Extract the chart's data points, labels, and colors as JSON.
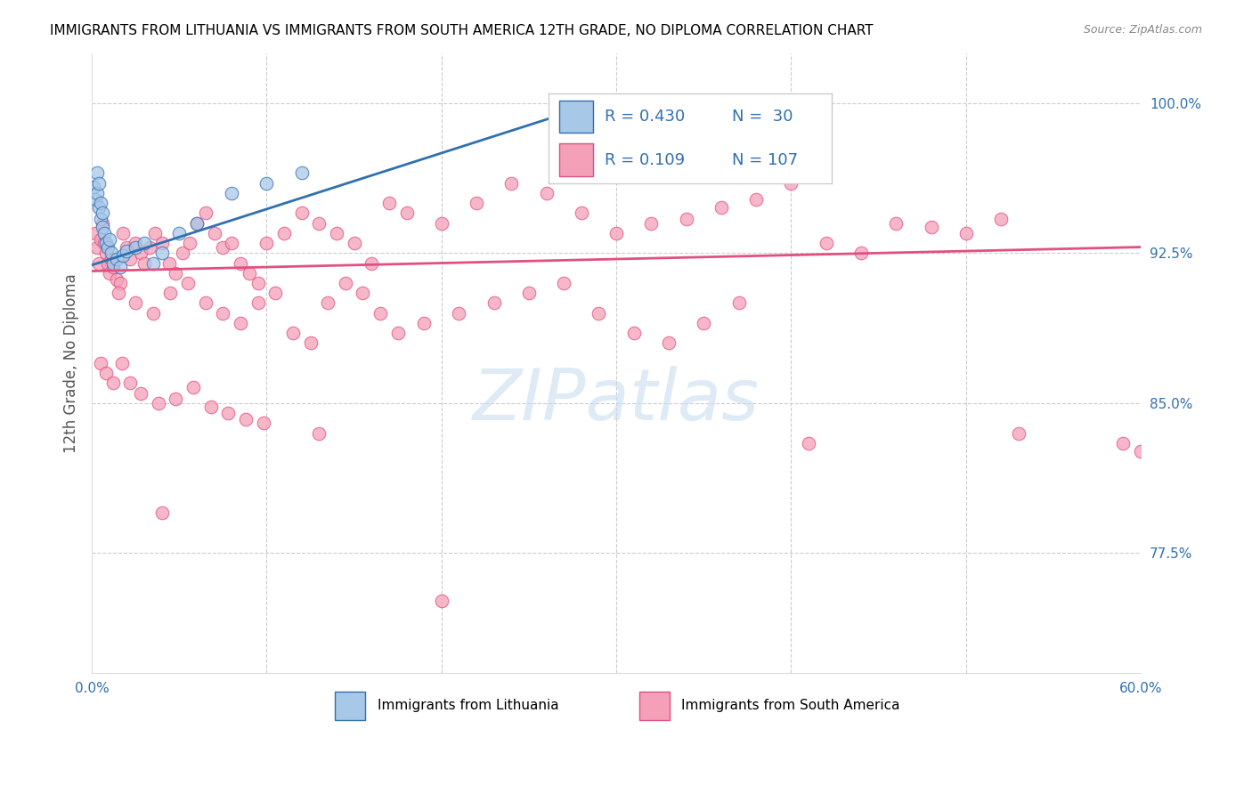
{
  "title": "IMMIGRANTS FROM LITHUANIA VS IMMIGRANTS FROM SOUTH AMERICA 12TH GRADE, NO DIPLOMA CORRELATION CHART",
  "source": "Source: ZipAtlas.com",
  "ylabel": "12th Grade, No Diploma",
  "ytick_labels": [
    "100.0%",
    "92.5%",
    "85.0%",
    "77.5%"
  ],
  "ytick_values": [
    1.0,
    0.925,
    0.85,
    0.775
  ],
  "xlim": [
    0.0,
    0.6
  ],
  "ylim": [
    0.715,
    1.025
  ],
  "legend_blue_R": "0.430",
  "legend_blue_N": "30",
  "legend_pink_R": "0.109",
  "legend_pink_N": "107",
  "legend_label_blue": "Immigrants from Lithuania",
  "legend_label_pink": "Immigrants from South America",
  "blue_color": "#a8c8e8",
  "pink_color": "#f4a0b8",
  "blue_line_color": "#3070b0",
  "pink_line_color": "#e05080",
  "blue_scatter_x": [
    0.001,
    0.002,
    0.003,
    0.003,
    0.004,
    0.004,
    0.005,
    0.005,
    0.006,
    0.006,
    0.007,
    0.008,
    0.009,
    0.01,
    0.011,
    0.012,
    0.014,
    0.016,
    0.018,
    0.02,
    0.025,
    0.03,
    0.035,
    0.04,
    0.05,
    0.06,
    0.08,
    0.1,
    0.12,
    0.29
  ],
  "blue_scatter_y": [
    0.958,
    0.952,
    0.965,
    0.955,
    0.948,
    0.96,
    0.942,
    0.95,
    0.945,
    0.938,
    0.935,
    0.93,
    0.928,
    0.932,
    0.925,
    0.92,
    0.922,
    0.918,
    0.924,
    0.926,
    0.928,
    0.93,
    0.92,
    0.925,
    0.935,
    0.94,
    0.955,
    0.96,
    0.965,
    1.0
  ],
  "pink_scatter_x": [
    0.002,
    0.003,
    0.004,
    0.005,
    0.006,
    0.007,
    0.008,
    0.009,
    0.01,
    0.011,
    0.012,
    0.014,
    0.016,
    0.018,
    0.02,
    0.022,
    0.025,
    0.028,
    0.03,
    0.033,
    0.036,
    0.04,
    0.044,
    0.048,
    0.052,
    0.056,
    0.06,
    0.065,
    0.07,
    0.075,
    0.08,
    0.085,
    0.09,
    0.095,
    0.1,
    0.11,
    0.12,
    0.13,
    0.14,
    0.15,
    0.16,
    0.17,
    0.18,
    0.2,
    0.22,
    0.24,
    0.26,
    0.28,
    0.3,
    0.32,
    0.34,
    0.36,
    0.38,
    0.4,
    0.42,
    0.44,
    0.46,
    0.48,
    0.5,
    0.52,
    0.015,
    0.025,
    0.035,
    0.045,
    0.055,
    0.065,
    0.075,
    0.085,
    0.095,
    0.105,
    0.115,
    0.125,
    0.135,
    0.145,
    0.155,
    0.165,
    0.175,
    0.19,
    0.21,
    0.23,
    0.25,
    0.27,
    0.29,
    0.31,
    0.33,
    0.35,
    0.37,
    0.005,
    0.008,
    0.012,
    0.017,
    0.022,
    0.028,
    0.038,
    0.048,
    0.058,
    0.068,
    0.078,
    0.088,
    0.098,
    0.13,
    0.59,
    0.6,
    0.04,
    0.2,
    0.41,
    0.53
  ],
  "pink_scatter_y": [
    0.935,
    0.928,
    0.92,
    0.932,
    0.94,
    0.93,
    0.925,
    0.92,
    0.915,
    0.922,
    0.918,
    0.912,
    0.91,
    0.935,
    0.928,
    0.922,
    0.93,
    0.925,
    0.92,
    0.928,
    0.935,
    0.93,
    0.92,
    0.915,
    0.925,
    0.93,
    0.94,
    0.945,
    0.935,
    0.928,
    0.93,
    0.92,
    0.915,
    0.91,
    0.93,
    0.935,
    0.945,
    0.94,
    0.935,
    0.93,
    0.92,
    0.95,
    0.945,
    0.94,
    0.95,
    0.96,
    0.955,
    0.945,
    0.935,
    0.94,
    0.942,
    0.948,
    0.952,
    0.96,
    0.93,
    0.925,
    0.94,
    0.938,
    0.935,
    0.942,
    0.905,
    0.9,
    0.895,
    0.905,
    0.91,
    0.9,
    0.895,
    0.89,
    0.9,
    0.905,
    0.885,
    0.88,
    0.9,
    0.91,
    0.905,
    0.895,
    0.885,
    0.89,
    0.895,
    0.9,
    0.905,
    0.91,
    0.895,
    0.885,
    0.88,
    0.89,
    0.9,
    0.87,
    0.865,
    0.86,
    0.87,
    0.86,
    0.855,
    0.85,
    0.852,
    0.858,
    0.848,
    0.845,
    0.842,
    0.84,
    0.835,
    0.83,
    0.826,
    0.795,
    0.751,
    0.83,
    0.835
  ],
  "blue_line_x": [
    0.0,
    0.3
  ],
  "blue_line_y": [
    0.919,
    1.003
  ],
  "pink_line_x": [
    0.0,
    0.6
  ],
  "pink_line_y": [
    0.916,
    0.928
  ]
}
